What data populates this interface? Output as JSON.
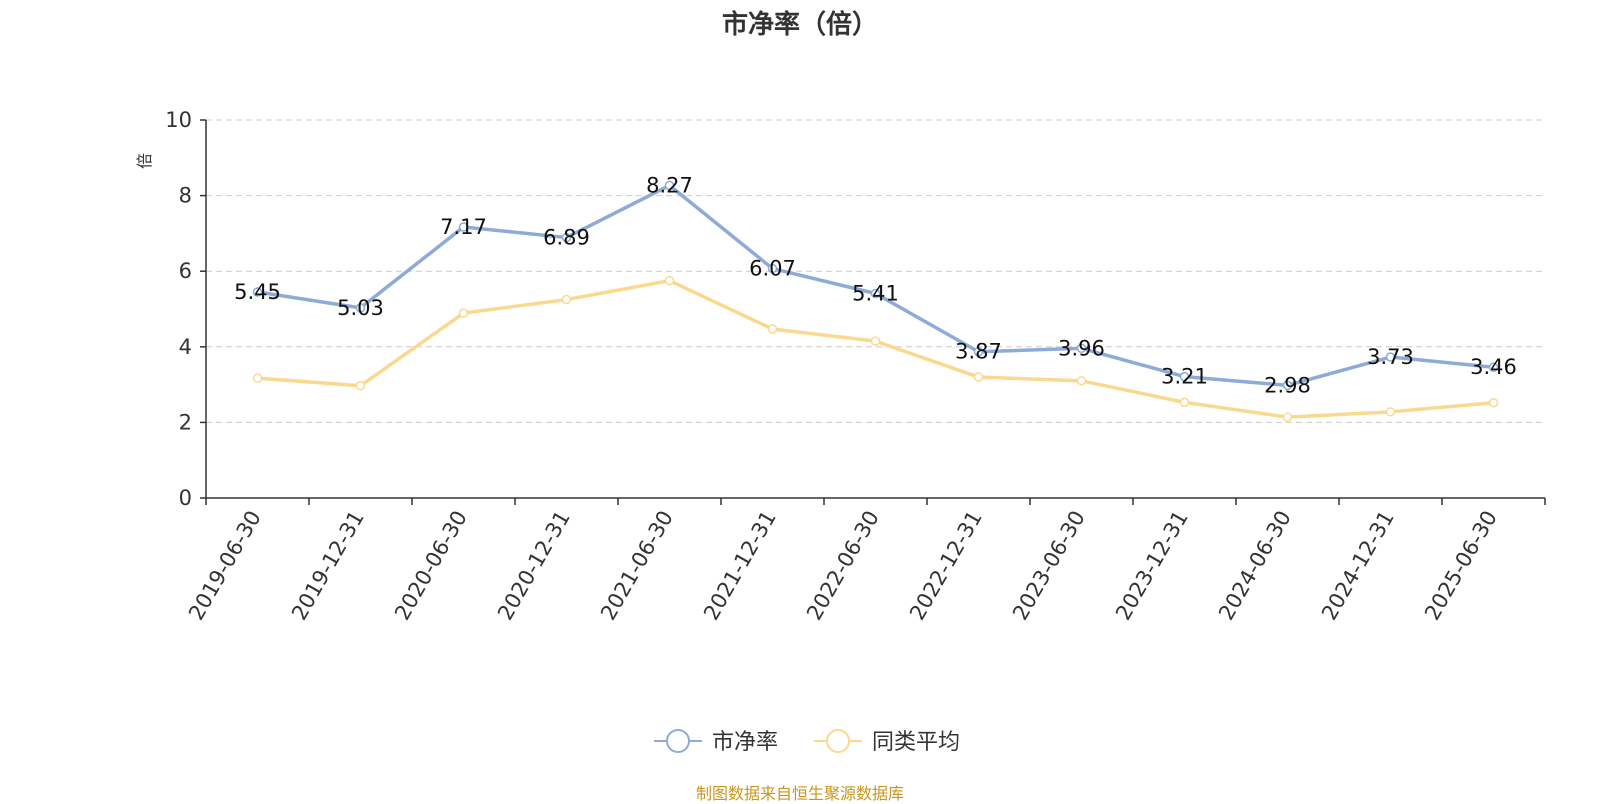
{
  "title": "市净率（倍）",
  "source_note": "制图数据来自恒生聚源数据库",
  "colors": {
    "series_main": "#8eaad6",
    "series_avg": "#fad98f",
    "grid": "#cccccc",
    "axis": "#333333",
    "unit_label": "#e0191d"
  },
  "chart_data": {
    "type": "line",
    "title": "市净率（倍）",
    "ylabel": "倍",
    "xlabel": "",
    "ylim": [
      0,
      10
    ],
    "yticks": [
      0,
      2,
      4,
      6,
      8,
      10
    ],
    "grid": true,
    "legend_position": "bottom-center",
    "categories": [
      "2019-06-30",
      "2019-12-31",
      "2020-06-30",
      "2020-12-31",
      "2021-06-30",
      "2021-12-31",
      "2022-06-30",
      "2022-12-31",
      "2023-06-30",
      "2023-12-31",
      "2024-06-30",
      "2024-12-31",
      "2025-06-30"
    ],
    "series": [
      {
        "name": "市净率",
        "values": [
          5.45,
          5.03,
          7.17,
          6.89,
          8.27,
          6.07,
          5.41,
          3.87,
          3.96,
          3.21,
          2.98,
          3.73,
          3.46
        ],
        "labels": [
          "5.45",
          "5.03",
          "7.17",
          "6.89",
          "8.27",
          "6.07",
          "5.41",
          "3.87",
          "3.96",
          "3.21",
          "2.98",
          "3.73",
          "3.46"
        ],
        "color": "#8eaad6",
        "show_labels": true
      },
      {
        "name": "同类平均",
        "values": [
          3.17,
          2.97,
          4.89,
          5.25,
          5.75,
          4.47,
          4.15,
          3.2,
          3.1,
          2.53,
          2.14,
          2.28,
          2.52
        ],
        "color": "#fad98f",
        "show_labels": false
      }
    ]
  }
}
